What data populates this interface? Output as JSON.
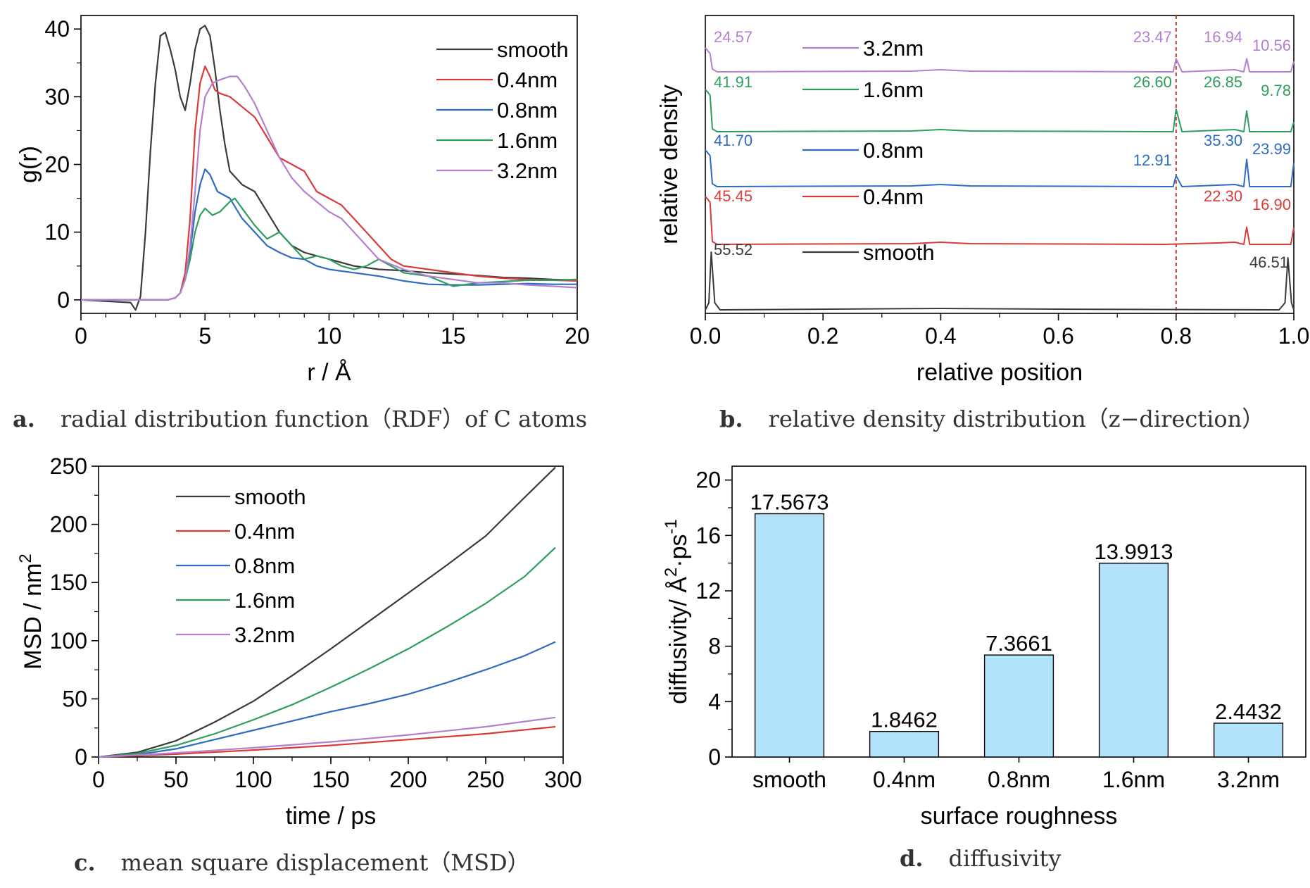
{
  "captions": {
    "a": {
      "letter": "a.",
      "text": "radial distribution function（RDF）of C atoms"
    },
    "b": {
      "letter": "b.",
      "text": "relative density distribution（z−direction）"
    },
    "c": {
      "letter": "c.",
      "text": "mean square displacement（MSD）"
    },
    "d": {
      "letter": "d.",
      "text": "diffusivity"
    }
  },
  "colors": {
    "smooth": "#3a3a3a",
    "0.4nm": "#d93b3b",
    "0.8nm": "#2f6cc0",
    "1.6nm": "#2e9e5e",
    "3.2nm": "#b57fcf",
    "bar": "#b3e3fa",
    "refline": "#c0392b"
  },
  "chart_data": [
    {
      "id": "a",
      "type": "line",
      "title": "",
      "xlabel": "r / Å",
      "ylabel": "g(r)",
      "xlim": [
        0,
        20
      ],
      "ylim": [
        -2,
        42
      ],
      "xticks": [
        "0",
        "5",
        "10",
        "15",
        "20"
      ],
      "yticks": [
        "0",
        "10",
        "20",
        "30",
        "40"
      ],
      "legend_position": "top-right",
      "series": [
        {
          "name": "smooth",
          "color_key": "smooth",
          "x": [
            0,
            2.0,
            2.2,
            2.4,
            2.6,
            2.8,
            3.0,
            3.2,
            3.4,
            3.6,
            3.8,
            4.0,
            4.2,
            4.4,
            4.6,
            4.8,
            5.0,
            5.2,
            5.4,
            5.6,
            5.8,
            6.0,
            6.5,
            7,
            7.5,
            8,
            8.5,
            9,
            9.5,
            10,
            11,
            12,
            13,
            14,
            15,
            16,
            17,
            18,
            19,
            20
          ],
          "y": [
            0,
            -0.4,
            -1.5,
            0.5,
            10,
            22,
            32,
            39,
            39.5,
            37,
            34,
            30,
            28,
            32,
            37,
            40,
            40.5,
            39,
            34,
            28,
            23,
            19,
            17,
            16,
            13,
            10,
            8,
            7,
            6.5,
            6,
            5,
            4.5,
            4.3,
            4,
            3.8,
            3.6,
            3.3,
            3.2,
            3.0,
            2.9
          ]
        },
        {
          "name": "0.4nm",
          "color_key": "0.4nm",
          "x": [
            0,
            3.5,
            3.8,
            4.0,
            4.2,
            4.4,
            4.6,
            4.8,
            5.0,
            5.2,
            5.4,
            5.6,
            6,
            6.5,
            7,
            7.5,
            8,
            8.5,
            9,
            9.5,
            10,
            10.5,
            11,
            11.5,
            12,
            12.5,
            13,
            14,
            15,
            16,
            17,
            18,
            19,
            20
          ],
          "y": [
            0,
            0,
            0.3,
            1,
            4,
            12,
            25,
            32,
            34.5,
            33,
            31,
            30.5,
            30,
            28.5,
            27,
            24,
            21,
            20,
            19,
            16,
            15,
            14,
            12,
            10,
            8,
            6,
            5,
            4.5,
            4,
            3.5,
            3.2,
            3.0,
            2.9,
            2.8
          ]
        },
        {
          "name": "0.8nm",
          "color_key": "0.8nm",
          "x": [
            0,
            3.5,
            3.8,
            4.0,
            4.2,
            4.4,
            4.6,
            4.8,
            5.0,
            5.2,
            5.5,
            6,
            6.5,
            7,
            7.5,
            8,
            8.5,
            9,
            9.5,
            10,
            11,
            12,
            13,
            14,
            15,
            16,
            17,
            18,
            19,
            20
          ],
          "y": [
            0,
            0,
            0.3,
            1,
            3,
            7,
            13,
            17,
            19.3,
            18.5,
            16,
            15,
            12,
            10,
            8,
            7,
            6.2,
            6,
            5,
            4.5,
            4,
            3.5,
            2.8,
            2.3,
            2.2,
            2.2,
            2.3,
            2.4,
            2.3,
            2.3
          ]
        },
        {
          "name": "1.6nm",
          "color_key": "1.6nm",
          "x": [
            0,
            3.5,
            3.8,
            4.0,
            4.2,
            4.4,
            4.6,
            4.8,
            5.0,
            5.3,
            5.6,
            6.0,
            6.2,
            6.6,
            7,
            7.5,
            8,
            8.5,
            9,
            9.5,
            10,
            10.5,
            11,
            11.5,
            12,
            12.5,
            13,
            14,
            15,
            16,
            17,
            18,
            19,
            20
          ],
          "y": [
            0,
            0,
            0.3,
            1,
            3,
            6,
            10,
            12.5,
            13.5,
            12.5,
            13,
            14.5,
            15,
            13,
            11,
            9,
            10,
            8,
            6,
            6.5,
            6,
            5,
            4.5,
            5,
            6,
            5,
            4,
            3.5,
            2,
            2.5,
            2.7,
            2.9,
            2.9,
            3.0
          ]
        },
        {
          "name": "3.2nm",
          "color_key": "3.2nm",
          "x": [
            0,
            3.5,
            3.8,
            4.0,
            4.2,
            4.4,
            4.6,
            4.8,
            5.0,
            5.3,
            5.6,
            6.0,
            6.3,
            6.6,
            7,
            7.5,
            8,
            8.5,
            9,
            9.5,
            10,
            10.5,
            11,
            11.5,
            12,
            13,
            14,
            15,
            16,
            17,
            18,
            19,
            20
          ],
          "y": [
            0,
            0,
            0.3,
            1,
            3,
            8,
            16,
            25,
            30,
            32,
            32.5,
            33,
            33,
            31.5,
            29,
            25,
            21,
            18,
            16,
            14.5,
            13,
            12,
            10,
            8,
            6,
            4.5,
            3.5,
            3,
            2.5,
            2.5,
            2.2,
            2.0,
            1.8
          ]
        }
      ]
    },
    {
      "id": "b",
      "type": "line",
      "title": "",
      "xlabel": "relative position",
      "ylabel": "relative density",
      "xlim": [
        0,
        1
      ],
      "xticks": [
        "0.0",
        "0.2",
        "0.4",
        "0.6",
        "0.8",
        "1.0"
      ],
      "reference_line_x": 0.8,
      "legend_position": "top-center",
      "series": [
        {
          "name": "3.2nm",
          "color_key": "3.2nm",
          "peaks": [
            {
              "x": 0.0,
              "value": 24.57
            },
            {
              "x": 0.8,
              "value": 23.47
            },
            {
              "x": 0.92,
              "value": 16.94
            },
            {
              "x": 1.0,
              "value": 10.56
            }
          ]
        },
        {
          "name": "1.6nm",
          "color_key": "1.6nm",
          "peaks": [
            {
              "x": 0.0,
              "value": 41.91
            },
            {
              "x": 0.8,
              "value": 26.6
            },
            {
              "x": 0.92,
              "value": 26.85
            },
            {
              "x": 1.0,
              "value": 9.78
            }
          ]
        },
        {
          "name": "0.8nm",
          "color_key": "0.8nm",
          "peaks": [
            {
              "x": 0.0,
              "value": 41.7
            },
            {
              "x": 0.8,
              "value": 12.91
            },
            {
              "x": 0.92,
              "value": 35.3
            },
            {
              "x": 1.0,
              "value": 23.99
            }
          ]
        },
        {
          "name": "0.4nm",
          "color_key": "0.4nm",
          "peaks": [
            {
              "x": 0.0,
              "value": 45.45
            },
            {
              "x": 0.92,
              "value": 22.3
            },
            {
              "x": 1.0,
              "value": 16.9
            }
          ]
        },
        {
          "name": "smooth",
          "color_key": "smooth",
          "peaks": [
            {
              "x": 0.01,
              "value": 55.52
            },
            {
              "x": 0.99,
              "value": 46.51
            }
          ]
        }
      ]
    },
    {
      "id": "c",
      "type": "line",
      "title": "",
      "xlabel": "time / ps",
      "ylabel": "MSD / nm",
      "ylabel_sup": "2",
      "xlim": [
        0,
        300
      ],
      "ylim": [
        0,
        250
      ],
      "xticks": [
        "0",
        "50",
        "100",
        "150",
        "200",
        "250",
        "300"
      ],
      "yticks": [
        "0",
        "50",
        "100",
        "150",
        "200",
        "250"
      ],
      "legend_position": "top-left",
      "series": [
        {
          "name": "smooth",
          "color_key": "smooth",
          "x": [
            0,
            25,
            50,
            75,
            100,
            125,
            150,
            175,
            200,
            225,
            250,
            275,
            295
          ],
          "y": [
            0,
            4,
            14,
            30,
            48,
            70,
            93,
            117,
            141,
            165,
            190,
            223,
            249
          ]
        },
        {
          "name": "0.4nm",
          "color_key": "0.4nm",
          "x": [
            0,
            50,
            100,
            150,
            200,
            250,
            295
          ],
          "y": [
            0,
            2.5,
            6,
            10,
            15,
            20,
            26
          ]
        },
        {
          "name": "0.8nm",
          "color_key": "0.8nm",
          "x": [
            0,
            25,
            50,
            75,
            100,
            125,
            150,
            175,
            200,
            225,
            250,
            275,
            295
          ],
          "y": [
            0,
            2,
            7,
            15,
            23,
            31,
            39,
            46,
            54,
            64,
            75,
            87,
            99
          ]
        },
        {
          "name": "1.6nm",
          "color_key": "1.6nm",
          "x": [
            0,
            25,
            50,
            75,
            100,
            125,
            150,
            175,
            200,
            225,
            250,
            275,
            295
          ],
          "y": [
            0,
            3,
            10,
            20,
            32,
            45,
            60,
            76,
            93,
            112,
            132,
            155,
            180
          ]
        },
        {
          "name": "3.2nm",
          "color_key": "3.2nm",
          "x": [
            0,
            50,
            100,
            150,
            200,
            250,
            295
          ],
          "y": [
            0,
            3.5,
            8,
            13,
            19,
            26,
            34
          ]
        }
      ]
    },
    {
      "id": "d",
      "type": "bar",
      "title": "",
      "xlabel": "surface roughness",
      "ylabel": "diffusivity/ Å",
      "ylabel_sup1": "2",
      "ylabel_mid": "·ps",
      "ylabel_sup2": "-1",
      "ylim": [
        0,
        21
      ],
      "yticks": [
        "0",
        "4",
        "8",
        "12",
        "16",
        "20"
      ],
      "categories": [
        "smooth",
        "0.4nm",
        "0.8nm",
        "1.6nm",
        "3.2nm"
      ],
      "values": [
        17.5673,
        1.8462,
        7.3661,
        13.9913,
        2.4432
      ],
      "value_labels": [
        "17.5673",
        "1.8462",
        "7.3661",
        "13.9913",
        "2.4432"
      ]
    }
  ]
}
